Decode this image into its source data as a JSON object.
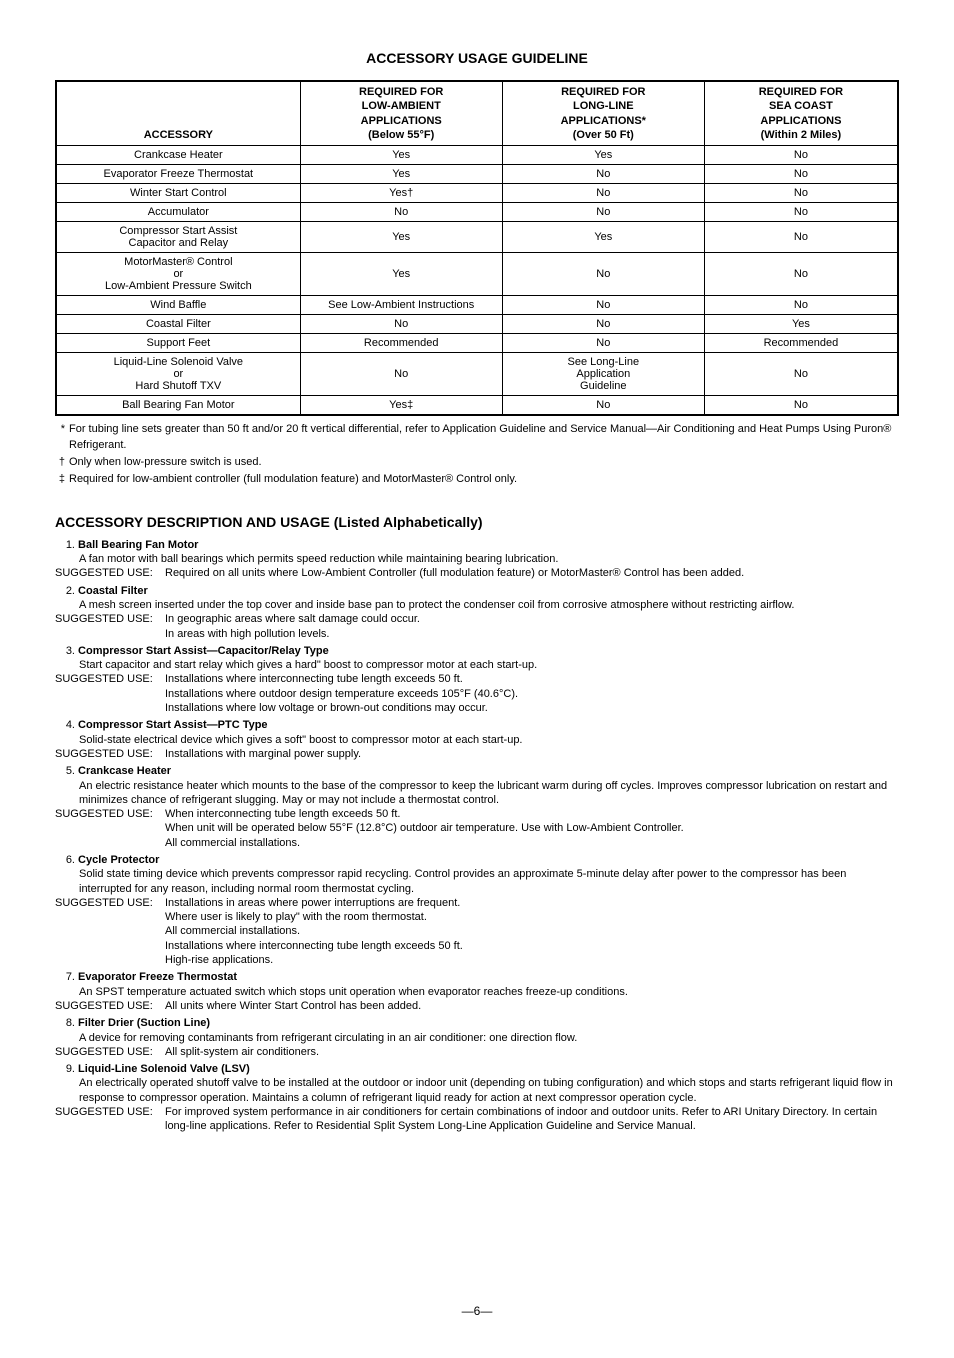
{
  "title": "ACCESSORY USAGE GUIDELINE",
  "table": {
    "headers": {
      "col1": "ACCESSORY",
      "col2_l1": "REQUIRED FOR",
      "col2_l2": "LOW-AMBIENT",
      "col2_l3": "APPLICATIONS",
      "col2_l4": "(Below 55°F)",
      "col3_l1": "REQUIRED FOR",
      "col3_l2": "LONG-LINE",
      "col3_l3": "APPLICATIONS*",
      "col3_l4": "(Over 50 Ft)",
      "col4_l1": "REQUIRED FOR",
      "col4_l2": "SEA COAST",
      "col4_l3": "APPLICATIONS",
      "col4_l4": "(Within 2 Miles)"
    },
    "rows": [
      {
        "c1": "Crankcase Heater",
        "c2": "Yes",
        "c3": "Yes",
        "c4": "No"
      },
      {
        "c1": "Evaporator Freeze Thermostat",
        "c2": "Yes",
        "c3": "No",
        "c4": "No"
      },
      {
        "c1": "Winter Start Control",
        "c2": "Yes†",
        "c3": "No",
        "c4": "No"
      },
      {
        "c1": "Accumulator",
        "c2": "No",
        "c3": "No",
        "c4": "No"
      },
      {
        "c1_l1": "Compressor Start Assist",
        "c1_l2": "Capacitor and Relay",
        "c2": "Yes",
        "c3": "Yes",
        "c4": "No"
      },
      {
        "c1_l1": "MotorMaster® Control",
        "c1_l2": "or",
        "c1_l3": "Low-Ambient Pressure Switch",
        "c2": "Yes",
        "c3": "No",
        "c4": "No"
      },
      {
        "c1": "Wind Baffle",
        "c2": "See Low-Ambient Instructions",
        "c3": "No",
        "c4": "No"
      },
      {
        "c1": "Coastal Filter",
        "c2": "No",
        "c3": "No",
        "c4": "Yes"
      },
      {
        "c1": "Support Feet",
        "c2": "Recommended",
        "c3": "No",
        "c4": "Recommended"
      },
      {
        "c1_l1": "Liquid-Line Solenoid Valve",
        "c1_l2": "or",
        "c1_l3": "Hard Shutoff TXV",
        "c2": "No",
        "c3_l1": "See Long-Line",
        "c3_l2": "Application",
        "c3_l3": "Guideline",
        "c4": "No"
      },
      {
        "c1": "Ball Bearing Fan Motor",
        "c2": "Yes‡",
        "c3": "No",
        "c4": "No"
      }
    ]
  },
  "notes": [
    {
      "sym": "*",
      "text": "For tubing line sets greater than 50 ft and/or 20 ft vertical differential, refer to Application Guideline and Service Manual—Air Conditioning and Heat Pumps Using Puron® Refrigerant."
    },
    {
      "sym": "†",
      "text": "Only when low-pressure switch is used."
    },
    {
      "sym": "‡",
      "text": "Required for low-ambient controller (full modulation feature) and MotorMaster® Control only."
    }
  ],
  "section_title": "ACCESSORY DESCRIPTION AND USAGE (Listed Alphabetically)",
  "su_label": "SUGGESTED USE:",
  "items": [
    {
      "num": "1.",
      "title": "Ball Bearing Fan Motor",
      "desc": "A fan motor with ball bearings which permits speed reduction while maintaining bearing lubrication.",
      "su": [
        "Required on all units where Low-Ambient Controller (full modulation feature) or MotorMaster® Control has been added."
      ]
    },
    {
      "num": "2.",
      "title": "Coastal Filter",
      "desc": "A mesh screen inserted under the top cover and inside base pan to protect the condenser coil from corrosive atmosphere without restricting airflow.",
      "su": [
        "In geographic areas where salt damage could occur.",
        "In areas with high pollution levels."
      ]
    },
    {
      "num": "3.",
      "title": "Compressor Start Assist—Capacitor/Relay Type",
      "desc": "Start capacitor and start relay which gives a hard\" boost to compressor motor at each start-up.",
      "su": [
        "Installations where interconnecting tube length exceeds 50 ft.",
        "Installations where outdoor design temperature exceeds 105°F (40.6°C).",
        "Installations where low voltage or brown-out conditions may occur."
      ]
    },
    {
      "num": "4.",
      "title": "Compressor Start Assist—PTC Type",
      "desc": "Solid-state electrical device which gives a soft\" boost to compressor motor at each start-up.",
      "su": [
        "Installations with marginal power supply."
      ]
    },
    {
      "num": "5.",
      "title": "Crankcase Heater",
      "desc": "An electric resistance heater which mounts to the base of the compressor to keep the lubricant warm during off cycles. Improves compressor lubrication on restart and minimizes chance of refrigerant slugging. May or may not include a thermostat control.",
      "su": [
        "When interconnecting tube length exceeds 50 ft.",
        "When unit will be operated below 55°F (12.8°C) outdoor air temperature. Use with Low-Ambient Controller.",
        "All commercial installations."
      ]
    },
    {
      "num": "6.",
      "title": "Cycle Protector",
      "desc": "Solid state timing device which prevents compressor rapid recycling. Control provides an approximate 5-minute delay after power to the compressor has been interrupted for any reason, including normal room thermostat cycling.",
      "su": [
        "Installations in areas where power interruptions are frequent.",
        "Where user is likely to play\" with the room thermostat.",
        "All commercial installations.",
        "Installations where interconnecting tube length exceeds 50 ft.",
        "High-rise applications."
      ]
    },
    {
      "num": "7.",
      "title": "Evaporator Freeze Thermostat",
      "desc": "An SPST temperature actuated switch which stops unit operation when evaporator reaches freeze-up conditions.",
      "su": [
        "All units where Winter Start Control has been added."
      ]
    },
    {
      "num": "8.",
      "title": "Filter Drier (Suction Line)",
      "desc": "A device for removing contaminants from refrigerant circulating in an air conditioner: one direction flow.",
      "su": [
        "All split-system air conditioners."
      ]
    },
    {
      "num": "9.",
      "title": "Liquid-Line Solenoid Valve (LSV)",
      "desc": "An electrically operated shutoff valve to be installed at the outdoor or indoor unit (depending on tubing configuration) and which stops and starts refrigerant liquid flow in response to compressor operation. Maintains a column of refrigerant liquid ready for action at next compressor operation cycle.",
      "su": [
        "For improved system performance in air conditioners for certain combinations of indoor and outdoor units. Refer to ARI Unitary Directory. In certain long-line applications. Refer to Residential Split System Long-Line Application Guideline and Service Manual."
      ]
    }
  ],
  "page_num": "—6—"
}
